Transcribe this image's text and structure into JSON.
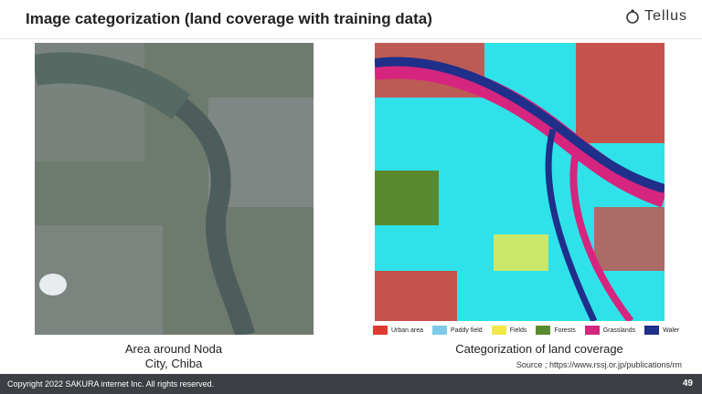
{
  "header": {
    "title": "Image categorization (land coverage with training data)",
    "logo": "Tellus"
  },
  "left_panel": {
    "caption_lines": [
      "Area around Noda",
      "City, Chiba"
    ]
  },
  "right_panel": {
    "caption": "Categorization of land coverage",
    "legend": [
      {
        "label": "Urban area",
        "color": "#e03a2f"
      },
      {
        "label": "Paddy field",
        "color": "#7ecbe8"
      },
      {
        "label": "Fields",
        "color": "#f2e84a"
      },
      {
        "label": "Forests",
        "color": "#5a8a2e"
      },
      {
        "label": "Grasslands",
        "color": "#d6257e"
      },
      {
        "label": "Waler",
        "color": "#1f2f8a"
      }
    ],
    "source": "Source ; https://www.rssj.or.jp/publications/rm"
  },
  "footer": {
    "copyright": "Copyright 2022 SAKURA internet Inc. All rights reserved.",
    "page_number": "49"
  }
}
